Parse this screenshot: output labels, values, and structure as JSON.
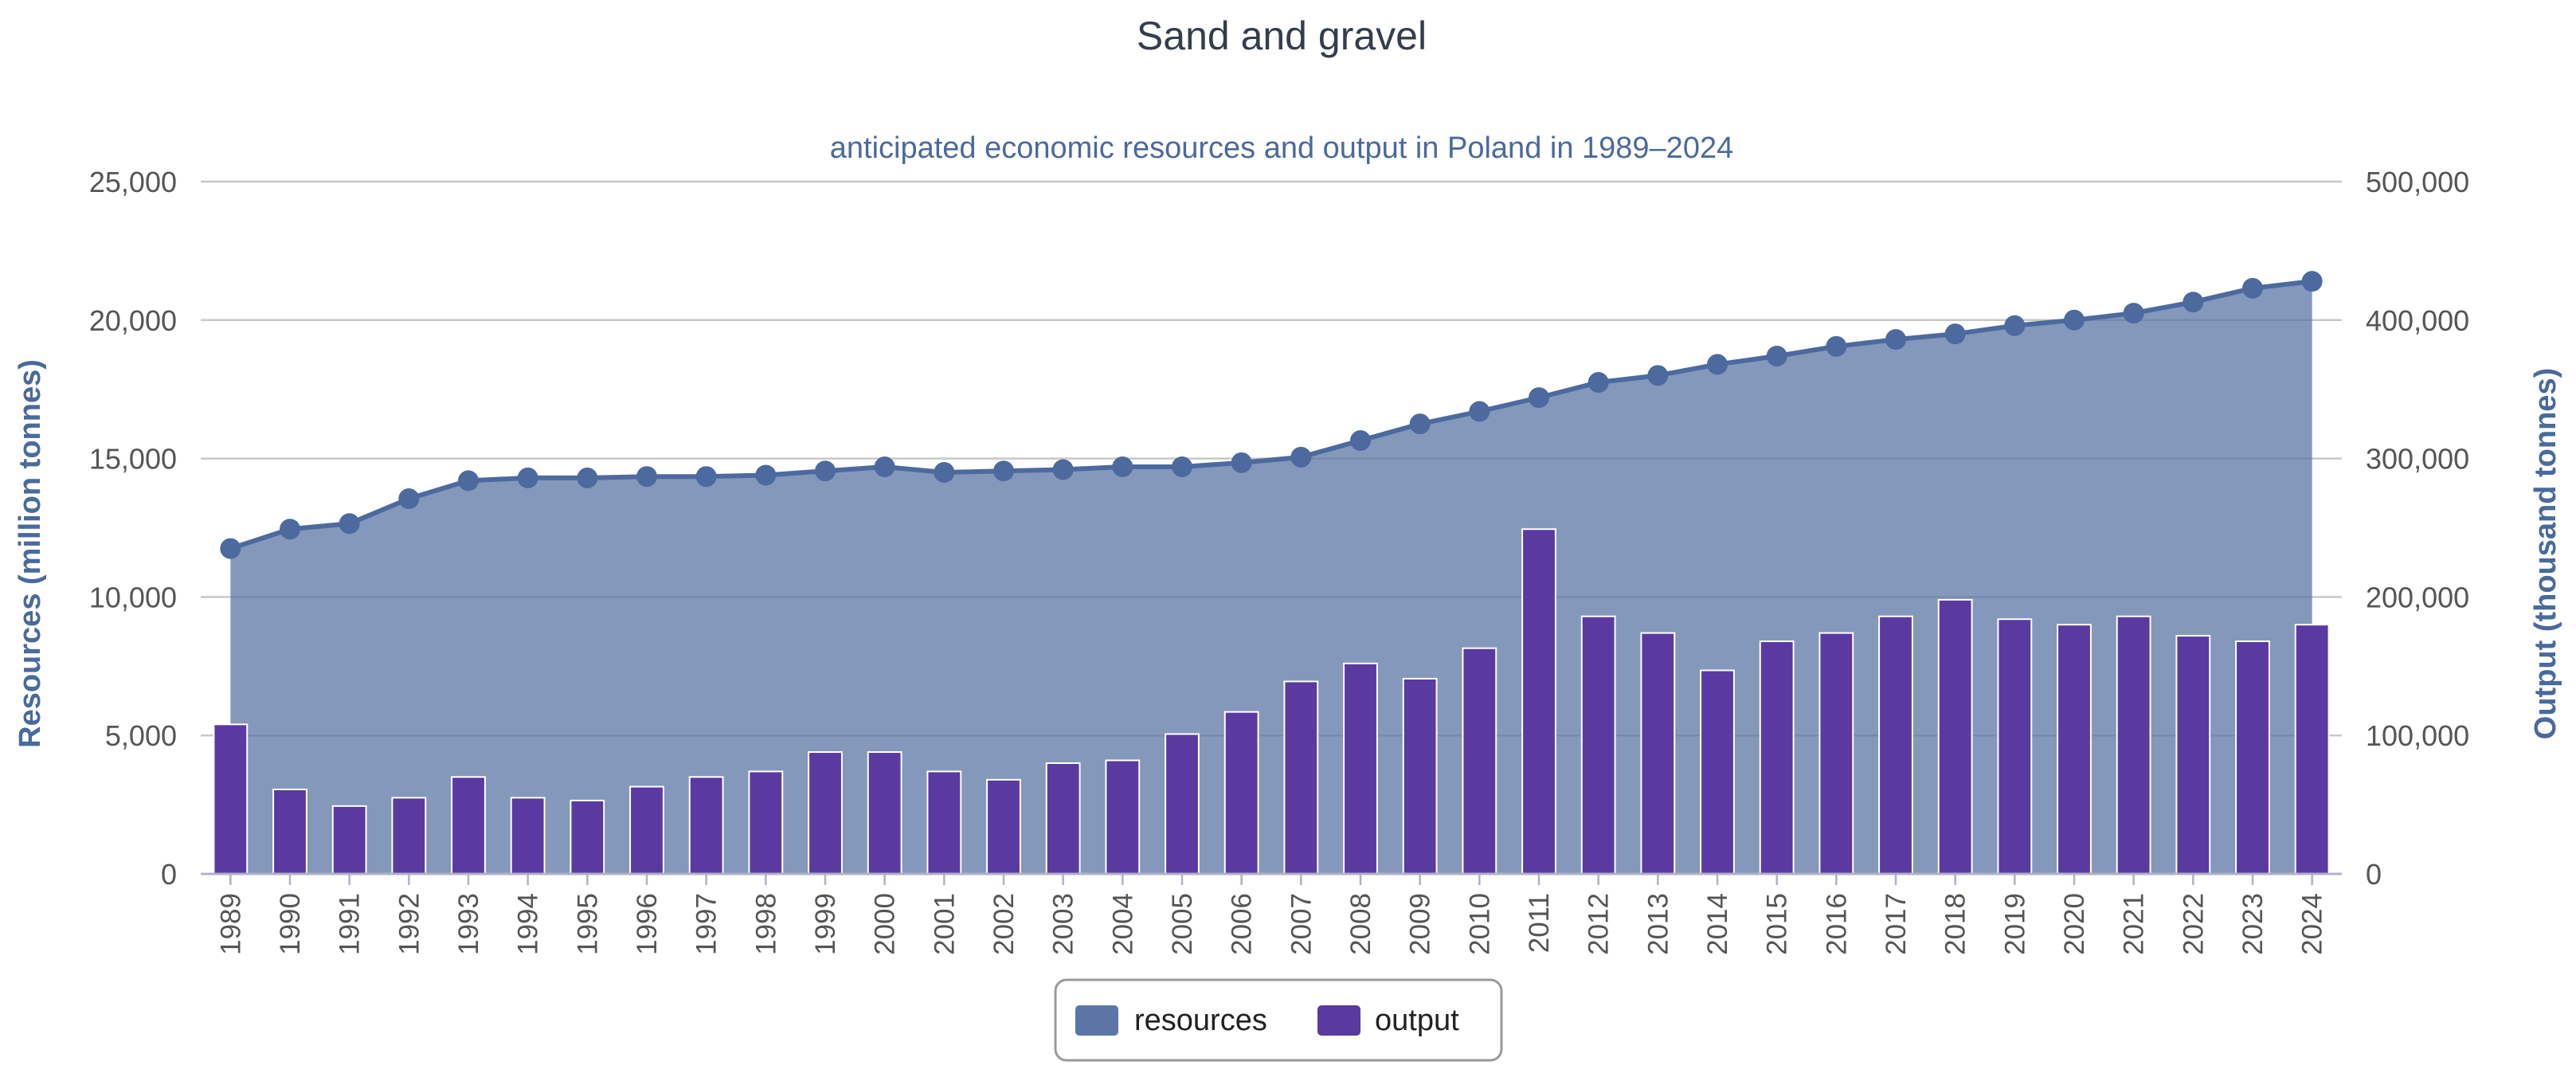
{
  "chart_data": {
    "type": "bar+area",
    "title": "Sand and gravel",
    "subtitle": "anticipated economic resources and output in Poland in 1989–2024",
    "ylabel_left": "Resources (million tonnes)",
    "ylabel_right": "Output (thousand tonnes)",
    "ylim_left": [
      0,
      25000
    ],
    "ylim_right": [
      0,
      500000
    ],
    "left_ticks": [
      "0",
      "5,000",
      "10,000",
      "15,000",
      "20,000",
      "25,000"
    ],
    "right_ticks": [
      "0",
      "100,000",
      "200,000",
      "300,000",
      "400,000",
      "500,000"
    ],
    "grid": true,
    "legend_position": "bottom-center",
    "categories": [
      "1989",
      "1990",
      "1991",
      "1992",
      "1993",
      "1994",
      "1995",
      "1996",
      "1997",
      "1998",
      "1999",
      "2000",
      "2001",
      "2002",
      "2003",
      "2004",
      "2005",
      "2006",
      "2007",
      "2008",
      "2009",
      "2010",
      "2011",
      "2012",
      "2013",
      "2014",
      "2015",
      "2016",
      "2017",
      "2018",
      "2019",
      "2020",
      "2021",
      "2022",
      "2023",
      "2024"
    ],
    "series": [
      {
        "name": "resources",
        "type": "area",
        "axis": "left",
        "color": "#5b76a6",
        "values": [
          11750,
          12450,
          12650,
          13550,
          14200,
          14300,
          14300,
          14350,
          14350,
          14400,
          14550,
          14700,
          14500,
          14550,
          14600,
          14700,
          14700,
          14850,
          15050,
          15650,
          16250,
          16700,
          17200,
          17750,
          18000,
          18400,
          18700,
          19050,
          19300,
          19500,
          19800,
          20000,
          20250,
          20650,
          21150,
          21400
        ]
      },
      {
        "name": "output",
        "type": "bar",
        "axis": "right",
        "color": "#5a3aa0",
        "values": [
          108000,
          61000,
          49000,
          55000,
          70000,
          55000,
          53000,
          63000,
          70000,
          74000,
          88000,
          88000,
          74000,
          68000,
          80000,
          82000,
          101000,
          117000,
          139000,
          152000,
          141000,
          163000,
          249000,
          186000,
          174000,
          147000,
          168000,
          174000,
          186000,
          198000,
          184000,
          180000,
          186000,
          172000,
          168000,
          180000
        ]
      }
    ]
  }
}
